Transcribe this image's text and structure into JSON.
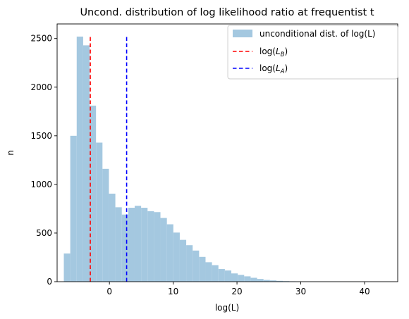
{
  "chart_data": {
    "type": "bar",
    "title": "Uncond. distribution of log likelihood ratio at frequentist  t",
    "xlabel": "log(L)",
    "ylabel": "n",
    "xlim": [
      -8.2,
      45.2
    ],
    "ylim": [
      0,
      2650
    ],
    "x_ticks": [
      0,
      10,
      20,
      30,
      40
    ],
    "y_ticks": [
      0,
      500,
      1000,
      1500,
      2000,
      2500
    ],
    "x_tick_labels": [
      "0",
      "10",
      "20",
      "30",
      "40"
    ],
    "y_tick_labels": [
      "0",
      "500",
      "1000",
      "1500",
      "2000",
      "2500"
    ],
    "bin_start": -7.15,
    "bin_width": 1.01,
    "values": [
      290,
      1500,
      2520,
      2430,
      1810,
      1430,
      1160,
      905,
      765,
      690,
      760,
      780,
      760,
      725,
      715,
      655,
      590,
      505,
      430,
      375,
      320,
      255,
      200,
      170,
      130,
      115,
      85,
      70,
      55,
      40,
      28,
      18,
      13,
      9,
      6,
      4,
      3,
      2,
      1,
      1,
      1,
      1,
      1,
      0,
      1,
      0,
      0,
      0,
      0,
      0,
      1
    ],
    "vlines": [
      {
        "x": -3.0,
        "color": "#ff0000",
        "style": "dashed",
        "ymax": 2520
      },
      {
        "x": 2.7,
        "color": "#0000ff",
        "style": "dashed",
        "ymax": 2520
      }
    ],
    "histogram_color": "#a4c8e0",
    "legend": {
      "placement": "top-right",
      "entries": [
        {
          "label": "unconditional dist. of log(L)",
          "kind": "patch",
          "color": "#a4c8e0"
        },
        {
          "label_main": "log(",
          "label_var": "L",
          "label_sub": "B",
          "label_end": ")",
          "kind": "dashed-line",
          "color": "#ff0000"
        },
        {
          "label_main": "log(",
          "label_var": "L",
          "label_sub": "A",
          "label_end": ")",
          "kind": "dashed-line",
          "color": "#0000ff"
        }
      ]
    },
    "grid": false
  }
}
